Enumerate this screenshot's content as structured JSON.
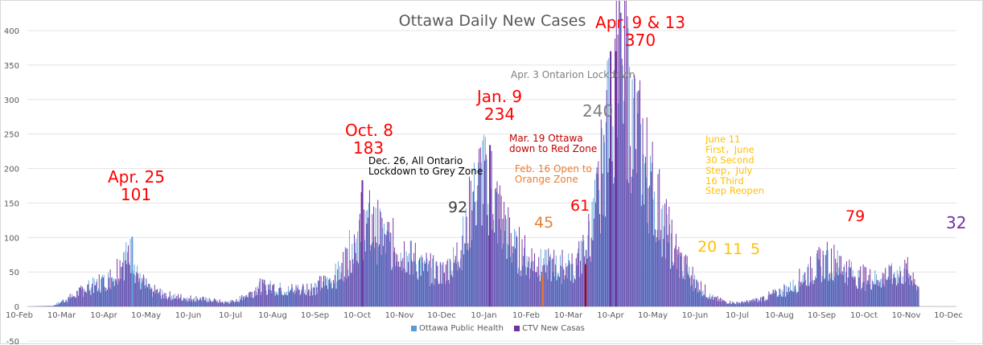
{
  "chart_data": {
    "type": "bar",
    "title": "Ottawa Daily New Cases",
    "ylim": [
      -50,
      400
    ],
    "yticks": [
      -50,
      0,
      50,
      100,
      150,
      200,
      250,
      300,
      350,
      400
    ],
    "xtick_labels": [
      "10-Feb",
      "10-Mar",
      "10-Apr",
      "10-May",
      "10-Jun",
      "10-Jul",
      "10-Aug",
      "10-Sep",
      "10-Oct",
      "10-Nov",
      "10-Dec",
      "10-Jan",
      "10-Feb",
      "10-Mar",
      "10-Apr",
      "10-May",
      "10-Jun",
      "10-Jul",
      "10-Aug",
      "10-Sep",
      "10-Oct",
      "10-Nov",
      "10-Dec"
    ],
    "series": [
      {
        "name": "Ottawa Public Health",
        "color": "#5b9bd5"
      },
      {
        "name": "CTV New Casas",
        "color": "#7030a0"
      }
    ],
    "daily_cases_anchors": [
      [
        0,
        0
      ],
      [
        18,
        1
      ],
      [
        25,
        8
      ],
      [
        32,
        15
      ],
      [
        38,
        22
      ],
      [
        45,
        30
      ],
      [
        52,
        35
      ],
      [
        60,
        42
      ],
      [
        65,
        58
      ],
      [
        70,
        70
      ],
      [
        74,
        78
      ],
      [
        80,
        40
      ],
      [
        88,
        24
      ],
      [
        100,
        16
      ],
      [
        115,
        12
      ],
      [
        130,
        10
      ],
      [
        142,
        6
      ],
      [
        150,
        8
      ],
      [
        160,
        20
      ],
      [
        168,
        30
      ],
      [
        178,
        28
      ],
      [
        190,
        24
      ],
      [
        205,
        28
      ],
      [
        215,
        34
      ],
      [
        225,
        52
      ],
      [
        235,
        95
      ],
      [
        240,
        118
      ],
      [
        245,
        120
      ],
      [
        252,
        110
      ],
      [
        262,
        90
      ],
      [
        272,
        80
      ],
      [
        282,
        62
      ],
      [
        292,
        52
      ],
      [
        300,
        50
      ],
      [
        308,
        70
      ],
      [
        315,
        105
      ],
      [
        320,
        150
      ],
      [
        325,
        180
      ],
      [
        330,
        190
      ],
      [
        335,
        165
      ],
      [
        342,
        120
      ],
      [
        350,
        88
      ],
      [
        360,
        70
      ],
      [
        372,
        62
      ],
      [
        385,
        58
      ],
      [
        395,
        60
      ],
      [
        402,
        85
      ],
      [
        408,
        130
      ],
      [
        414,
        200
      ],
      [
        418,
        270
      ],
      [
        423,
        330
      ],
      [
        427,
        355
      ],
      [
        432,
        320
      ],
      [
        440,
        245
      ],
      [
        450,
        175
      ],
      [
        460,
        110
      ],
      [
        470,
        65
      ],
      [
        478,
        45
      ],
      [
        485,
        28
      ],
      [
        492,
        15
      ],
      [
        500,
        8
      ],
      [
        510,
        5
      ],
      [
        520,
        7
      ],
      [
        530,
        12
      ],
      [
        540,
        20
      ],
      [
        550,
        28
      ],
      [
        560,
        45
      ],
      [
        570,
        60
      ],
      [
        578,
        68
      ],
      [
        585,
        62
      ],
      [
        595,
        48
      ],
      [
        605,
        40
      ],
      [
        615,
        42
      ],
      [
        625,
        48
      ],
      [
        634,
        50
      ],
      [
        639,
        45
      ],
      [
        642,
        20
      ]
    ],
    "highlight_bars": [
      {
        "day": 75,
        "value": 101,
        "color": "#5b9bd5"
      },
      {
        "day": 241,
        "value": 183,
        "color": "#7030a0"
      },
      {
        "day": 333,
        "value": 234,
        "color": "#7030a0"
      },
      {
        "day": 420,
        "value": 370,
        "color": "#7030a0"
      },
      {
        "day": 424,
        "value": 370,
        "color": "#7030a0"
      },
      {
        "day": 371,
        "value": 45,
        "color": "#ed7d31"
      },
      {
        "day": 402,
        "value": 61,
        "color": "#c00000"
      }
    ],
    "annotations": [
      {
        "id": "apr25",
        "text": "Apr. 25\n101",
        "color": "#ff0000",
        "day": 75,
        "value": 101
      },
      {
        "id": "oct8",
        "text": "Oct. 8\n183",
        "color": "#ff0000",
        "day": 241,
        "value": 183
      },
      {
        "id": "dec26",
        "text": "Dec. 26, All Ontario\nLockdown to Grey Zone",
        "color": "#000000",
        "day": 320,
        "value": 200
      },
      {
        "id": "n92",
        "text": "92",
        "color": "#404040",
        "day": 304,
        "value": 92
      },
      {
        "id": "jan9",
        "text": "Jan. 9\n234",
        "color": "#ff0000",
        "day": 333,
        "value": 234
      },
      {
        "id": "mar19",
        "text": "Mar. 19 Ottawa\ndown to Red Zone",
        "color": "#c00000",
        "day": 400,
        "value": 230
      },
      {
        "id": "feb16",
        "text": "Feb. 16 Open to\nOrange Zone",
        "color": "#ed7d31",
        "day": 372,
        "value": 190
      },
      {
        "id": "n45",
        "text": "45",
        "color": "#ed7d31",
        "day": 371,
        "value": 45
      },
      {
        "id": "n61",
        "text": "61",
        "color": "#ff0000",
        "day": 402,
        "value": 61
      },
      {
        "id": "n240",
        "text": "240",
        "color": "#7f7f7f",
        "day": 412,
        "value": 240
      },
      {
        "id": "apr3",
        "text": "Apr. 3 Ontarion Lockdown",
        "color": "#7f7f7f",
        "day": 418,
        "value": 320
      },
      {
        "id": "apr913",
        "text": "Apr. 9 & 13\n370",
        "color": "#ff0000",
        "day": 422,
        "value": 370
      },
      {
        "id": "june11",
        "text": "June 11\nFirst，June\n30 Second\nStep，July\n16 Third\nStep Reopen",
        "color": "#ffc000",
        "day": 484,
        "value": 230
      },
      {
        "id": "n20",
        "text": "20",
        "color": "#ffc000",
        "day": 484,
        "value": 20
      },
      {
        "id": "n11",
        "text": "11",
        "color": "#ffc000",
        "day": 503,
        "value": 11
      },
      {
        "id": "n5",
        "text": "5",
        "color": "#ffc000",
        "day": 519,
        "value": 5
      },
      {
        "id": "n79",
        "text": "79",
        "color": "#ff0000",
        "day": 580,
        "value": 79
      },
      {
        "id": "n32",
        "text": "32",
        "color": "#7030a0",
        "day": 640,
        "value": 32
      }
    ]
  }
}
